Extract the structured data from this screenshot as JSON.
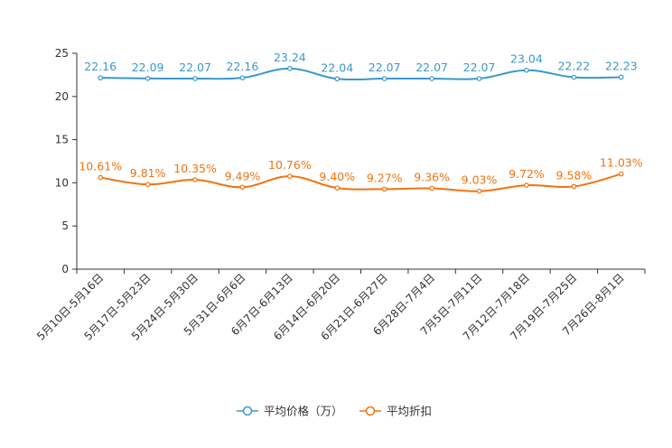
{
  "chart_data": {
    "type": "line",
    "title": "",
    "xlabel": "",
    "ylabel": "",
    "ylim": [
      0,
      25
    ],
    "yticks": [
      "0",
      "5",
      "10",
      "15",
      "20",
      "25"
    ],
    "categories": [
      "5月10日-5月16日",
      "5月17日-5月23日",
      "5月24日-5月30日",
      "5月31日-6月6日",
      "6月7日-6月13日",
      "6月14日-6月20日",
      "6月21日-6月27日",
      "6月28日-7月4日",
      "7月5日-7月11日",
      "7月12日-7月18日",
      "7月19日-7月25日",
      "7月26日-8月1日"
    ],
    "series": [
      {
        "name": "平均价格（万）",
        "color": "#3b98cc",
        "values": [
          22.16,
          22.09,
          22.07,
          22.16,
          23.24,
          22.04,
          22.07,
          22.07,
          22.07,
          23.04,
          22.22,
          22.23
        ],
        "labels": [
          "22.16",
          "22.09",
          "22.07",
          "22.16",
          "23.24",
          "22.04",
          "22.07",
          "22.07",
          "22.07",
          "23.04",
          "22.22",
          "22.23"
        ]
      },
      {
        "name": "平均折扣",
        "color": "#f2730f",
        "values": [
          10.61,
          9.81,
          10.35,
          9.49,
          10.76,
          9.4,
          9.27,
          9.36,
          9.03,
          9.72,
          9.58,
          11.03
        ],
        "labels": [
          "10.61%",
          "9.81%",
          "10.35%",
          "9.49%",
          "10.76%",
          "9.40%",
          "9.27%",
          "9.36%",
          "9.03%",
          "9.72%",
          "9.58%",
          "11.03%"
        ]
      }
    ],
    "legend": {
      "position": "bottom"
    }
  }
}
